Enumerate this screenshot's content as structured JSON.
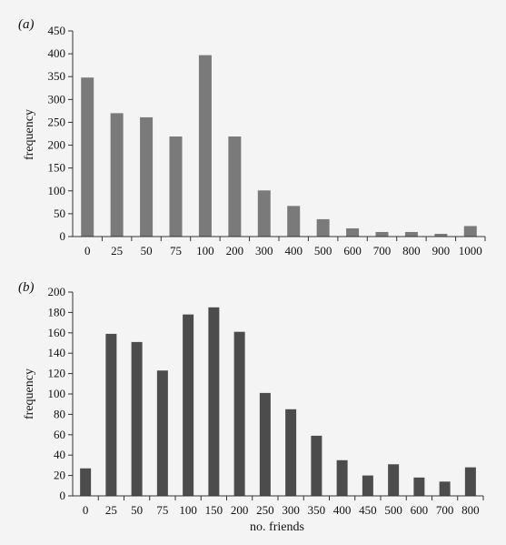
{
  "chart_data": [
    {
      "type": "bar",
      "panel_label": "(a)",
      "categories": [
        "0",
        "25",
        "50",
        "75",
        "100",
        "200",
        "300",
        "400",
        "500",
        "600",
        "700",
        "800",
        "900",
        "1000"
      ],
      "values": [
        348,
        270,
        261,
        219,
        397,
        219,
        101,
        67,
        38,
        18,
        10,
        10,
        6,
        23
      ],
      "ylabel": "frequency",
      "xlabel": "",
      "ylim": [
        0,
        450
      ],
      "yticks": [
        0,
        50,
        100,
        150,
        200,
        250,
        300,
        350,
        400,
        450
      ],
      "bar_color": "#7a7a7a",
      "grid": false
    },
    {
      "type": "bar",
      "panel_label": "(b)",
      "categories": [
        "0",
        "25",
        "50",
        "75",
        "100",
        "150",
        "200",
        "250",
        "300",
        "350",
        "400",
        "450",
        "500",
        "600",
        "700",
        "800"
      ],
      "values": [
        27,
        159,
        151,
        123,
        178,
        185,
        161,
        101,
        85,
        59,
        35,
        20,
        31,
        18,
        14,
        28
      ],
      "ylabel": "frequency",
      "xlabel": "no. friends",
      "ylim": [
        0,
        200
      ],
      "yticks": [
        0,
        20,
        40,
        60,
        80,
        100,
        120,
        140,
        160,
        180,
        200
      ],
      "bar_color": "#4c4c4c",
      "grid": false
    }
  ]
}
